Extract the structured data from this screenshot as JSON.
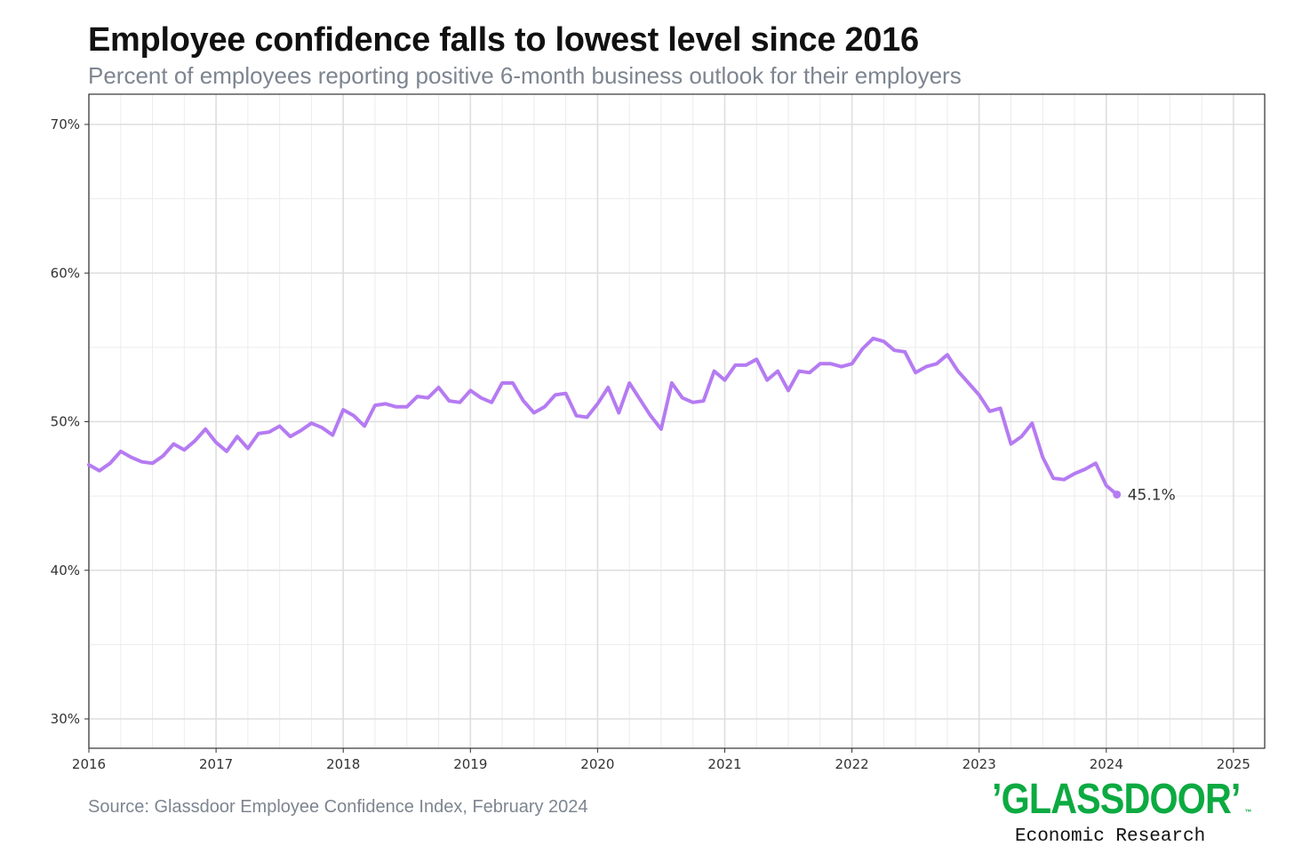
{
  "chart_data": {
    "type": "line",
    "title": "Employee confidence falls to lowest level since 2016",
    "subtitle": "Percent of employees reporting positive 6-month business outlook for their employers",
    "source": "Source: Glassdoor Employee Confidence Index, February 2024",
    "xlabel": "",
    "ylabel": "",
    "xlim": [
      2016,
      2025.25
    ],
    "ylim": [
      28,
      72
    ],
    "x_ticks": [
      2016,
      2017,
      2018,
      2019,
      2020,
      2021,
      2022,
      2023,
      2024,
      2025
    ],
    "x_tick_labels": [
      "2016",
      "2017",
      "2018",
      "2019",
      "2020",
      "2021",
      "2022",
      "2023",
      "2024",
      "2025"
    ],
    "y_ticks": [
      30,
      40,
      50,
      60,
      70
    ],
    "y_tick_labels": [
      "30%",
      "40%",
      "50%",
      "60%",
      "70%"
    ],
    "grid": true,
    "line_color": "#b57bf2",
    "series": [
      {
        "name": "Employee confidence",
        "values": [
          47.1,
          46.7,
          47.2,
          48.0,
          47.6,
          47.3,
          47.2,
          47.7,
          48.5,
          48.1,
          48.7,
          49.5,
          48.6,
          48.0,
          49.0,
          48.2,
          49.2,
          49.3,
          49.7,
          49.0,
          49.4,
          49.9,
          49.6,
          49.1,
          50.8,
          50.4,
          49.7,
          51.1,
          51.2,
          51.0,
          51.0,
          51.7,
          51.6,
          52.3,
          51.4,
          51.3,
          52.1,
          51.6,
          51.3,
          52.6,
          52.6,
          51.4,
          50.6,
          51.0,
          51.8,
          51.9,
          50.4,
          50.3,
          51.2,
          52.3,
          50.6,
          52.6,
          51.5,
          50.4,
          49.5,
          52.6,
          51.6,
          51.3,
          51.4,
          53.4,
          52.8,
          53.8,
          53.8,
          54.2,
          52.8,
          53.4,
          52.1,
          53.4,
          53.3,
          53.9,
          53.9,
          53.7,
          53.9,
          54.9,
          55.6,
          55.4,
          54.8,
          54.7,
          53.3,
          53.7,
          53.9,
          54.5,
          53.4,
          52.6,
          51.8,
          50.7,
          50.9,
          48.5,
          49.0,
          49.9,
          47.6,
          46.2,
          46.1,
          46.5,
          46.8,
          47.2,
          45.7,
          45.1
        ]
      }
    ],
    "end_label": "45.1%"
  },
  "logo": {
    "text": "’GLASSDOOR’",
    "tm": "™",
    "subtitle": "Economic Research"
  }
}
